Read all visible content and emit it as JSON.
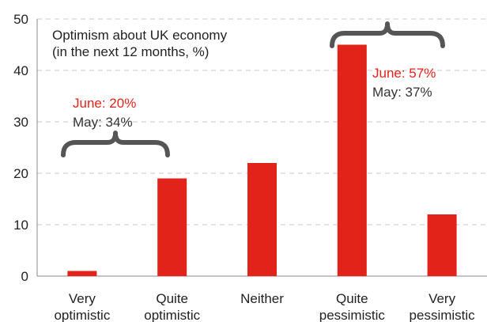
{
  "chart_data": {
    "type": "bar",
    "categories": [
      [
        "Very",
        "optimistic"
      ],
      [
        "Quite",
        "optimistic"
      ],
      [
        "Neither"
      ],
      [
        "Quite",
        "pessimistic"
      ],
      [
        "Very",
        "pessimistic"
      ]
    ],
    "values": [
      1,
      19,
      22,
      45,
      12
    ],
    "ylim": [
      0,
      50
    ],
    "yticks": [
      "0",
      "10",
      "20",
      "30",
      "40",
      "50"
    ],
    "grid": true,
    "bar_color": "#e2231a",
    "annotations": {
      "title_line1": "Optimism about UK economy",
      "title_line2": "(in the next 12 months, %)",
      "optimistic_june": "June: 20%",
      "optimistic_may": "May: 34%",
      "pessimistic_june": "June: 57%",
      "pessimistic_may": "May: 37%",
      "june_color": "#e2231a",
      "may_color": "#333333"
    }
  }
}
